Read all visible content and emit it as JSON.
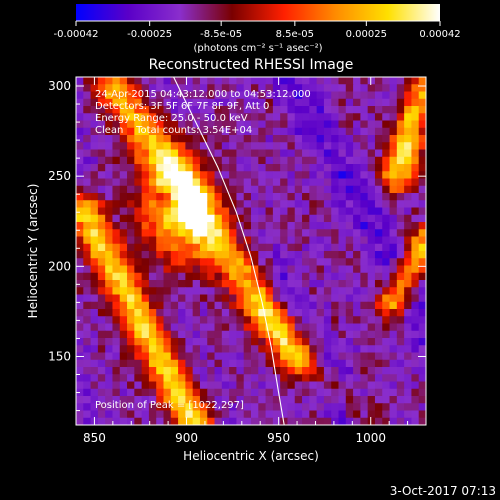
{
  "chart_data": {
    "type": "heatmap",
    "title": "Reconstructed RHESSI Image",
    "xlabel": "Heliocentric X (arcsec)",
    "ylabel": "Heliocentric Y (arcsec)",
    "xlim": [
      840,
      1030
    ],
    "ylim": [
      112,
      305
    ],
    "x_ticks": [
      850,
      900,
      950,
      1000
    ],
    "y_ticks": [
      150,
      200,
      250,
      300
    ],
    "colorbar": {
      "min": -0.00042,
      "max": 0.00042,
      "ticks": [
        {
          "value": -0.00042,
          "label": "-0.00042"
        },
        {
          "value": -0.00025,
          "label": "-0.00025"
        },
        {
          "value": -8.5e-05,
          "label": "-8.5e-05"
        },
        {
          "value": 8.5e-05,
          "label": "8.5e-05"
        },
        {
          "value": 0.00025,
          "label": "0.00025"
        },
        {
          "value": 0.00042,
          "label": "0.00042"
        }
      ],
      "unit_label": "(photons cm⁻² s⁻¹ asec⁻²)",
      "colormap": [
        "#0000ff",
        "#5a00c8",
        "#8a2ecc",
        "#7a0000",
        "#ff2000",
        "#ff8c00",
        "#ffe000",
        "#ffffff"
      ]
    },
    "annotations": [
      "24-Apr-2015 04:43:12.000 to 04:53:12.000",
      "Detectors: 3F 5F 6F 7F 8F 9F, Att 0",
      "Energy Range: 25.0 - 50.0 keV",
      "Clean    Total counts: 3.54E+04"
    ],
    "peak_text": "Position of Peak = [1022,297]",
    "peak": [
      1022,
      297
    ],
    "limb": [
      [
        893,
        305
      ],
      [
        905,
        280
      ],
      [
        917,
        255
      ],
      [
        927,
        230
      ],
      [
        935,
        205
      ],
      [
        941,
        180
      ],
      [
        946,
        155
      ],
      [
        950,
        130
      ],
      [
        953,
        112
      ]
    ]
  },
  "footer": {
    "date": "3-Oct-2017 07:13"
  }
}
